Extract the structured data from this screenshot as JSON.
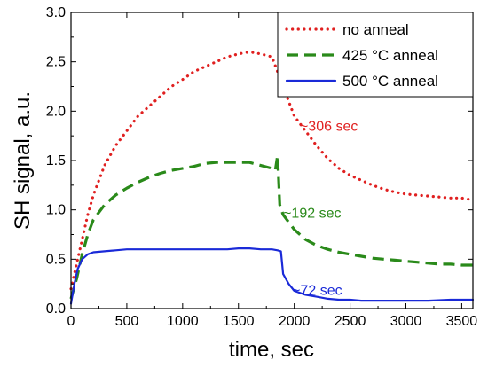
{
  "chart_data": {
    "type": "line",
    "xlabel": "time, sec",
    "ylabel": "SH signal, a.u.",
    "xlim": [
      0,
      3600
    ],
    "ylim": [
      0,
      3.0
    ],
    "xticks": [
      0,
      500,
      1000,
      1500,
      2000,
      2500,
      3000,
      3500
    ],
    "yticks": [
      0.0,
      0.5,
      1.0,
      1.5,
      2.0,
      2.5,
      3.0
    ],
    "xtick_labels": [
      "0",
      "500",
      "1000",
      "1500",
      "2000",
      "2500",
      "3000",
      "3500"
    ],
    "ytick_labels": [
      "0.0",
      "0.5",
      "1.0",
      "1.5",
      "2.0",
      "2.5",
      "3.0"
    ],
    "grid": false,
    "legend_position": "top-right",
    "series": [
      {
        "name": "no anneal",
        "color": "#e02020",
        "style": "dotted",
        "x": [
          0,
          50,
          100,
          150,
          200,
          300,
          400,
          500,
          600,
          700,
          800,
          900,
          1000,
          1100,
          1200,
          1300,
          1400,
          1500,
          1600,
          1700,
          1800,
          1850,
          1900,
          1950,
          2000,
          2100,
          2200,
          2300,
          2400,
          2500,
          2600,
          2700,
          2800,
          2900,
          3000,
          3100,
          3200,
          3300,
          3400,
          3500,
          3600
        ],
        "y": [
          0.2,
          0.45,
          0.7,
          0.95,
          1.15,
          1.45,
          1.65,
          1.8,
          1.95,
          2.05,
          2.15,
          2.25,
          2.32,
          2.4,
          2.45,
          2.5,
          2.55,
          2.58,
          2.6,
          2.58,
          2.55,
          2.4,
          2.25,
          2.1,
          1.95,
          1.8,
          1.65,
          1.52,
          1.42,
          1.35,
          1.3,
          1.25,
          1.21,
          1.18,
          1.16,
          1.15,
          1.14,
          1.13,
          1.12,
          1.12,
          1.1
        ]
      },
      {
        "name": "425 °C anneal",
        "color": "#2a8a1a",
        "style": "dashed",
        "x": [
          0,
          50,
          100,
          150,
          200,
          300,
          400,
          500,
          600,
          700,
          800,
          900,
          1000,
          1100,
          1200,
          1300,
          1400,
          1500,
          1600,
          1700,
          1800,
          1830,
          1850,
          1870,
          1900,
          2000,
          2100,
          2200,
          2300,
          2400,
          2500,
          2600,
          2700,
          2800,
          2900,
          3000,
          3100,
          3200,
          3300,
          3400,
          3500,
          3600
        ],
        "y": [
          0.1,
          0.3,
          0.55,
          0.75,
          0.9,
          1.05,
          1.15,
          1.22,
          1.28,
          1.33,
          1.37,
          1.4,
          1.42,
          1.44,
          1.47,
          1.48,
          1.48,
          1.48,
          1.48,
          1.45,
          1.42,
          1.4,
          1.55,
          1.05,
          0.95,
          0.8,
          0.7,
          0.64,
          0.6,
          0.57,
          0.55,
          0.53,
          0.51,
          0.5,
          0.49,
          0.48,
          0.47,
          0.46,
          0.45,
          0.45,
          0.44,
          0.44
        ]
      },
      {
        "name": "500 °C anneal",
        "color": "#1a2ad8",
        "style": "solid",
        "x": [
          0,
          30,
          60,
          100,
          150,
          200,
          300,
          400,
          500,
          600,
          700,
          800,
          900,
          1000,
          1100,
          1200,
          1300,
          1400,
          1500,
          1600,
          1700,
          1800,
          1850,
          1880,
          1900,
          1950,
          2000,
          2100,
          2200,
          2300,
          2400,
          2500,
          2600,
          2800,
          3000,
          3200,
          3400,
          3600
        ],
        "y": [
          0.05,
          0.25,
          0.4,
          0.5,
          0.55,
          0.57,
          0.58,
          0.59,
          0.6,
          0.6,
          0.6,
          0.6,
          0.6,
          0.6,
          0.6,
          0.6,
          0.6,
          0.6,
          0.61,
          0.61,
          0.6,
          0.6,
          0.59,
          0.58,
          0.35,
          0.25,
          0.18,
          0.14,
          0.12,
          0.1,
          0.09,
          0.09,
          0.08,
          0.08,
          0.08,
          0.08,
          0.09,
          0.09
        ]
      }
    ],
    "annotations": [
      {
        "text": "~306 sec",
        "x": 2050,
        "y": 1.8,
        "color": "#e02020"
      },
      {
        "text": "~192 sec",
        "x": 1900,
        "y": 0.92,
        "color": "#2a8a1a"
      },
      {
        "text": "~72 sec",
        "x": 1980,
        "y": 0.14,
        "color": "#1a2ad8"
      }
    ]
  }
}
